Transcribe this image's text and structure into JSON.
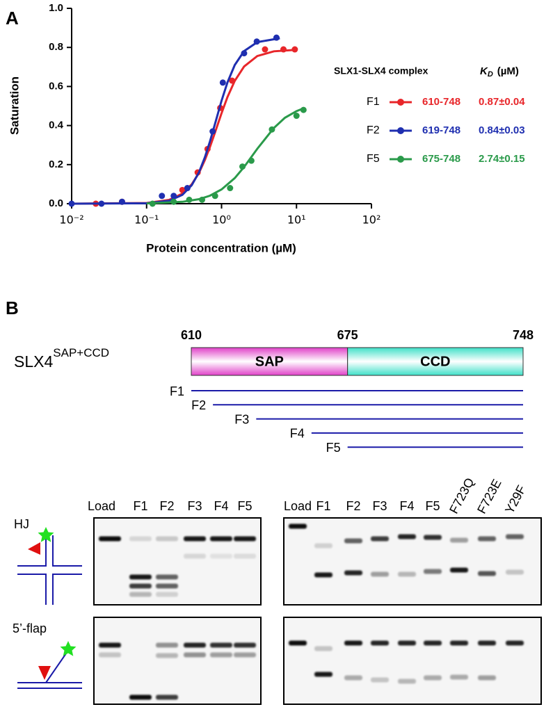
{
  "panel_labels": [
    "A",
    "B"
  ],
  "chart_data": {
    "type": "scatter",
    "log_x": true,
    "xlabel": "Protein concentration (µM)",
    "ylabel": "Saturation",
    "xlim": [
      0.01,
      100
    ],
    "xticks": [
      {
        "value": 0.01,
        "label": "10⁻²"
      },
      {
        "value": 0.1,
        "label": "10⁻¹"
      },
      {
        "value": 1,
        "label": "10⁰"
      },
      {
        "value": 10,
        "label": "10¹"
      },
      {
        "value": 100,
        "label": "10²"
      }
    ],
    "ylim": [
      0,
      1
    ],
    "yticks": [
      {
        "value": 0,
        "label": "0.0"
      },
      0.2,
      0.4,
      0.6,
      0.8,
      {
        "value": 1,
        "label": "1.0"
      }
    ],
    "legend_title": "SLX1-SLX4 complex",
    "kd_symbol": "K",
    "kd_subscript": "D",
    "kd_unit": "(µM)",
    "series": [
      {
        "name": "F1",
        "range": "610-748",
        "kd": "0.87±0.04",
        "color": "#e8262a",
        "x": [
          0.021,
          0.047,
          0.3,
          0.48,
          0.65,
          0.96,
          1.38,
          3.8,
          6.7,
          9.5
        ],
        "values": [
          0.0,
          0.01,
          0.07,
          0.16,
          0.28,
          0.49,
          0.63,
          0.79,
          0.79,
          0.79
        ],
        "fit_x": [
          0.01,
          0.1,
          0.2,
          0.3,
          0.4,
          0.5,
          0.6,
          0.7,
          0.8,
          1,
          1.2,
          1.5,
          2,
          3,
          5,
          10
        ],
        "fit_values": [
          0.0,
          0.0035,
          0.0195,
          0.0516,
          0.0989,
          0.158,
          0.224,
          0.29,
          0.354,
          0.463,
          0.546,
          0.629,
          0.702,
          0.756,
          0.78,
          0.788
        ]
      },
      {
        "name": "F2",
        "range": "619-748",
        "kd": "0.84±0.03",
        "color": "#1f2fb0",
        "x": [
          0.01,
          0.025,
          0.047,
          0.16,
          0.23,
          0.35,
          0.76,
          1.04,
          2.0,
          2.95,
          5.4
        ],
        "values": [
          0.0,
          0.0,
          0.01,
          0.04,
          0.04,
          0.08,
          0.37,
          0.62,
          0.77,
          0.83,
          0.85
        ],
        "fit_x": [
          0.01,
          0.1,
          0.2,
          0.3,
          0.4,
          0.5,
          0.6,
          0.7,
          0.8,
          1,
          1.2,
          1.5,
          2,
          3,
          6
        ],
        "fit_values": [
          0.0,
          0.0022,
          0.015,
          0.0451,
          0.0944,
          0.161,
          0.238,
          0.318,
          0.396,
          0.527,
          0.621,
          0.71,
          0.781,
          0.827,
          0.847
        ]
      },
      {
        "name": "F5",
        "range": "675-748",
        "kd": "2.74±0.15",
        "color": "#2a9a4a",
        "x": [
          0.12,
          0.23,
          0.37,
          0.55,
          0.82,
          1.3,
          1.9,
          2.5,
          4.7,
          10,
          12.4
        ],
        "values": [
          0.0,
          0.01,
          0.02,
          0.02,
          0.04,
          0.08,
          0.19,
          0.22,
          0.38,
          0.45,
          0.48
        ],
        "fit_x": [
          0.1,
          0.3,
          0.5,
          0.7,
          1,
          1.5,
          2,
          3,
          5,
          7,
          10,
          12.4
        ],
        "fit_values": [
          0.0013,
          0.0095,
          0.0232,
          0.041,
          0.0729,
          0.131,
          0.188,
          0.281,
          0.388,
          0.44,
          0.474,
          0.488
        ]
      }
    ]
  },
  "construct": {
    "name": "SLX4",
    "superscript": "SAP+CCD",
    "positions": [
      610,
      675,
      748
    ],
    "domains": [
      {
        "label": "SAP",
        "start": 610,
        "end": 675
      },
      {
        "label": "CCD",
        "start": 675,
        "end": 748
      }
    ],
    "fragments": [
      {
        "label": "F1",
        "start": 610,
        "end": 748
      },
      {
        "label": "F2",
        "start": 619,
        "end": 748
      },
      {
        "label": "F3",
        "start": 637,
        "end": 748
      },
      {
        "label": "F4",
        "start": 660,
        "end": 748
      },
      {
        "label": "F5",
        "start": 675,
        "end": 748
      }
    ]
  },
  "gels": {
    "substrates": [
      "HJ",
      "5’-flap"
    ],
    "left_lanes": [
      "Load",
      "F1",
      "F2",
      "F3",
      "F4",
      "F5"
    ],
    "right_lanes": [
      "Load",
      "F1",
      "F2",
      "F3",
      "F4",
      "F5",
      "F723Q",
      "F723E",
      "Y29F"
    ]
  }
}
